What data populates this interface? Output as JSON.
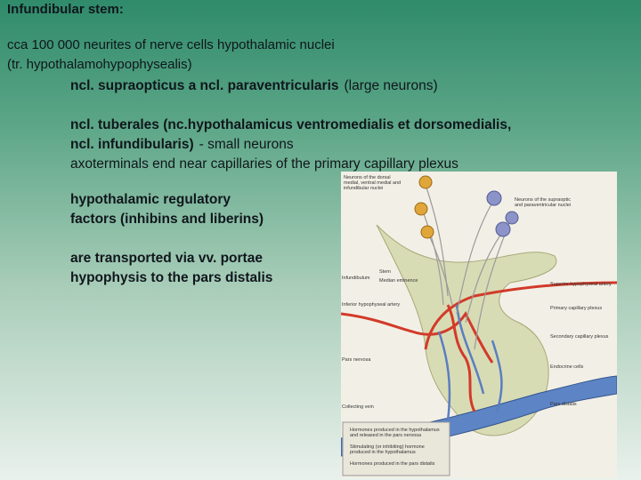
{
  "header": {
    "title": "Infundibular stem:",
    "lines": [
      "cca 100 000 neurites of nerve cells hypothalamic nuclei",
      "(tr. hypothalamohypophysealis)"
    ]
  },
  "blocks": [
    {
      "lines": [
        [
          {
            "text": "ncl. supraopticus a ncl. paraventricularis",
            "bold": true
          },
          {
            "text": "(large neurons)",
            "bold": false
          }
        ]
      ]
    },
    {
      "lines": [
        [
          {
            "text": "ncl. tuberales (nc.hypothalamicus ventromedialis et dorsomedialis,",
            "bold": true
          }
        ],
        [
          {
            "text": "ncl. infundibularis)",
            "bold": true
          },
          {
            "text": "- small neurons",
            "bold": false
          }
        ],
        [
          {
            "text": "axoterminals end near capillaries of the primary capillary plexus",
            "bold": false
          }
        ]
      ]
    },
    {
      "lines": [
        [
          {
            "text": "hypothalamic regulatory",
            "bold": true
          }
        ],
        [
          {
            "text": "factors (inhibins and liberins)",
            "bold": true
          }
        ]
      ]
    },
    {
      "lines": [
        [
          {
            "text": "are transported via vv. portae",
            "bold": true
          }
        ],
        [
          {
            "text": "hypophysis to the pars distalis",
            "bold": true
          }
        ]
      ]
    }
  ],
  "diagram": {
    "labels": [
      "Neurons of the dorsal medial, ventral medial and infundibular nuclei",
      "Neurons of the supraoptic and paraventricular nuclei",
      "Infundibulum",
      "Stem",
      "Median eminence",
      "Superior hypophyseal artery",
      "Primary capillary plexus",
      "Inferior hypophyseal artery",
      "Secondary capillary plexus",
      "Endocrine cells",
      "Pars nervosa",
      "Pars distalis",
      "Collecting vein",
      "Hormones produced in the hypothalamus and released in the pars nervosa",
      "Stimulating (or inhibiting) hormone produced in the hypothalamus",
      "Hormones produced in the pars distalis"
    ]
  }
}
